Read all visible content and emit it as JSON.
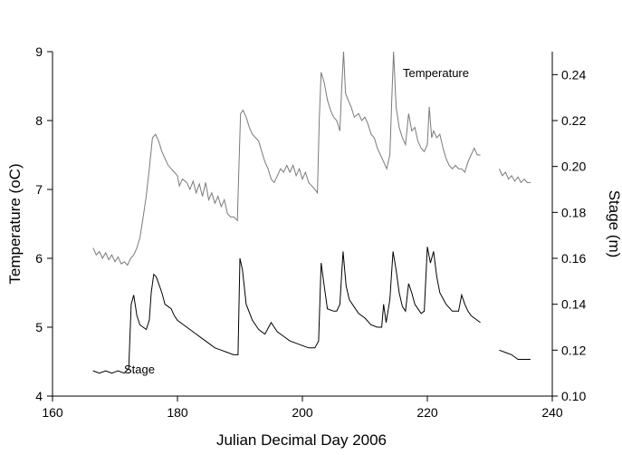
{
  "chart_data": {
    "type": "line",
    "xlabel": "Julian Decimal Day 2006",
    "ylabel_left": "Temperature (oC)",
    "ylabel_right": "Stage (m)",
    "xlim": [
      160,
      240
    ],
    "ylim_left": [
      4,
      9
    ],
    "ylim_right": [
      0.1,
      0.25
    ],
    "x_ticks": [
      "160",
      "180",
      "200",
      "220",
      "240"
    ],
    "y_left_ticks": [
      "4",
      "5",
      "6",
      "7",
      "8",
      "9"
    ],
    "y_right_ticks": [
      "0.10",
      "0.12",
      "0.14",
      "0.16",
      "0.18",
      "0.20",
      "0.22",
      "0.24"
    ],
    "annotations": {
      "temperature": "Temperature",
      "stage": "Stage"
    },
    "grid": false,
    "series": [
      {
        "name": "Temperature",
        "axis": "left",
        "color": "#7a7a7a",
        "segments": [
          [
            [
              166.5,
              6.15
            ],
            [
              167.0,
              6.05
            ],
            [
              167.5,
              6.1
            ],
            [
              168.0,
              6.0
            ],
            [
              168.5,
              6.08
            ],
            [
              169.0,
              5.98
            ],
            [
              169.5,
              6.05
            ],
            [
              170.0,
              5.95
            ],
            [
              170.5,
              6.02
            ],
            [
              171.0,
              5.92
            ],
            [
              171.5,
              5.95
            ],
            [
              172.0,
              5.9
            ],
            [
              172.5,
              6.0
            ],
            [
              173.0,
              6.05
            ],
            [
              173.5,
              6.15
            ],
            [
              174.0,
              6.3
            ],
            [
              174.5,
              6.6
            ],
            [
              175.0,
              6.9
            ],
            [
              175.5,
              7.3
            ],
            [
              176.0,
              7.75
            ],
            [
              176.5,
              7.8
            ],
            [
              177.0,
              7.7
            ],
            [
              177.5,
              7.55
            ],
            [
              178.0,
              7.45
            ],
            [
              178.5,
              7.35
            ],
            [
              179.0,
              7.3
            ],
            [
              179.5,
              7.25
            ],
            [
              180.0,
              7.2
            ],
            [
              180.3,
              7.05
            ],
            [
              180.8,
              7.15
            ],
            [
              181.5,
              7.1
            ],
            [
              182.0,
              7.0
            ],
            [
              182.5,
              7.12
            ],
            [
              183.0,
              6.95
            ],
            [
              183.5,
              7.08
            ],
            [
              184.0,
              6.9
            ],
            [
              184.5,
              7.1
            ],
            [
              185.0,
              6.85
            ],
            [
              185.5,
              6.95
            ],
            [
              186.0,
              6.8
            ],
            [
              186.5,
              6.9
            ],
            [
              187.0,
              6.75
            ],
            [
              187.5,
              6.85
            ],
            [
              188.0,
              6.65
            ],
            [
              188.5,
              6.6
            ],
            [
              189.0,
              6.6
            ],
            [
              189.6,
              6.55
            ],
            [
              189.8,
              7.2
            ],
            [
              190.1,
              8.1
            ],
            [
              190.5,
              8.15
            ],
            [
              191.0,
              8.05
            ],
            [
              191.5,
              7.9
            ],
            [
              192.0,
              7.8
            ],
            [
              192.5,
              7.75
            ],
            [
              193.0,
              7.7
            ],
            [
              193.5,
              7.55
            ],
            [
              194.0,
              7.4
            ],
            [
              194.5,
              7.3
            ],
            [
              195.0,
              7.15
            ],
            [
              195.5,
              7.1
            ],
            [
              196.0,
              7.2
            ],
            [
              196.5,
              7.3
            ],
            [
              197.0,
              7.25
            ],
            [
              197.5,
              7.35
            ],
            [
              198.0,
              7.25
            ],
            [
              198.5,
              7.35
            ],
            [
              199.0,
              7.2
            ],
            [
              199.5,
              7.3
            ],
            [
              200.0,
              7.15
            ],
            [
              200.5,
              7.25
            ],
            [
              201.0,
              7.1
            ],
            [
              201.5,
              7.05
            ],
            [
              202.0,
              7.0
            ],
            [
              202.4,
              6.95
            ],
            [
              202.7,
              8.0
            ],
            [
              203.0,
              8.7
            ],
            [
              203.5,
              8.55
            ],
            [
              204.0,
              8.3
            ],
            [
              204.5,
              8.15
            ],
            [
              205.0,
              8.05
            ],
            [
              205.5,
              8.0
            ],
            [
              206.0,
              7.85
            ],
            [
              206.3,
              8.5
            ],
            [
              206.6,
              9.0
            ],
            [
              206.9,
              8.4
            ],
            [
              207.3,
              8.3
            ],
            [
              207.8,
              8.2
            ],
            [
              208.3,
              8.05
            ],
            [
              209.0,
              8.1
            ],
            [
              209.5,
              8.0
            ],
            [
              210.0,
              8.05
            ],
            [
              210.5,
              7.95
            ],
            [
              211.0,
              7.8
            ],
            [
              211.5,
              7.75
            ],
            [
              212.0,
              7.6
            ],
            [
              212.5,
              7.5
            ],
            [
              213.0,
              7.4
            ],
            [
              213.5,
              7.3
            ],
            [
              214.0,
              7.5
            ],
            [
              214.3,
              8.3
            ],
            [
              214.6,
              9.0
            ],
            [
              215.0,
              8.2
            ],
            [
              215.5,
              7.9
            ],
            [
              216.0,
              7.75
            ],
            [
              216.5,
              7.65
            ],
            [
              217.0,
              8.1
            ],
            [
              217.5,
              7.85
            ],
            [
              218.0,
              7.9
            ],
            [
              218.5,
              7.7
            ],
            [
              219.0,
              7.6
            ],
            [
              219.5,
              7.55
            ],
            [
              220.0,
              7.65
            ],
            [
              220.3,
              8.2
            ],
            [
              220.7,
              7.75
            ],
            [
              221.0,
              7.85
            ],
            [
              221.5,
              7.75
            ],
            [
              222.0,
              7.8
            ],
            [
              222.5,
              7.6
            ],
            [
              223.0,
              7.45
            ],
            [
              223.5,
              7.35
            ],
            [
              224.0,
              7.3
            ],
            [
              224.5,
              7.35
            ],
            [
              225.0,
              7.3
            ],
            [
              225.5,
              7.3
            ],
            [
              226.0,
              7.25
            ],
            [
              226.5,
              7.4
            ],
            [
              227.0,
              7.5
            ],
            [
              227.5,
              7.6
            ],
            [
              228.0,
              7.5
            ],
            [
              228.5,
              7.5
            ]
          ],
          [
            [
              231.5,
              7.3
            ],
            [
              232.0,
              7.2
            ],
            [
              232.5,
              7.25
            ],
            [
              233.0,
              7.15
            ],
            [
              233.5,
              7.2
            ],
            [
              234.0,
              7.12
            ],
            [
              234.5,
              7.18
            ],
            [
              235.0,
              7.1
            ],
            [
              235.5,
              7.15
            ],
            [
              236.0,
              7.1
            ],
            [
              236.5,
              7.1
            ]
          ]
        ]
      },
      {
        "name": "Stage",
        "axis": "right",
        "color": "#000000",
        "segments": [
          [
            [
              166.5,
              0.111
            ],
            [
              167.5,
              0.11
            ],
            [
              168.5,
              0.111
            ],
            [
              169.5,
              0.11
            ],
            [
              170.5,
              0.111
            ],
            [
              171.5,
              0.11
            ],
            [
              172.2,
              0.112
            ],
            [
              172.6,
              0.14
            ],
            [
              173.0,
              0.144
            ],
            [
              173.5,
              0.135
            ],
            [
              174.0,
              0.131
            ],
            [
              174.5,
              0.13
            ],
            [
              175.0,
              0.129
            ],
            [
              175.5,
              0.133
            ],
            [
              175.8,
              0.145
            ],
            [
              176.2,
              0.153
            ],
            [
              176.6,
              0.152
            ],
            [
              177.0,
              0.149
            ],
            [
              177.5,
              0.145
            ],
            [
              178.0,
              0.14
            ],
            [
              178.5,
              0.139
            ],
            [
              179.0,
              0.138
            ],
            [
              179.5,
              0.135
            ],
            [
              180.0,
              0.133
            ],
            [
              181.0,
              0.131
            ],
            [
              182.0,
              0.129
            ],
            [
              183.0,
              0.127
            ],
            [
              184.0,
              0.125
            ],
            [
              185.0,
              0.123
            ],
            [
              186.0,
              0.121
            ],
            [
              187.0,
              0.12
            ],
            [
              188.0,
              0.119
            ],
            [
              189.0,
              0.118
            ],
            [
              189.7,
              0.118
            ],
            [
              190.0,
              0.16
            ],
            [
              190.4,
              0.155
            ],
            [
              191.0,
              0.14
            ],
            [
              192.0,
              0.133
            ],
            [
              193.0,
              0.129
            ],
            [
              194.0,
              0.127
            ],
            [
              195.0,
              0.132
            ],
            [
              195.5,
              0.13
            ],
            [
              196.0,
              0.128
            ],
            [
              197.0,
              0.126
            ],
            [
              198.0,
              0.124
            ],
            [
              199.0,
              0.123
            ],
            [
              200.0,
              0.122
            ],
            [
              201.0,
              0.121
            ],
            [
              202.0,
              0.121
            ],
            [
              202.6,
              0.124
            ],
            [
              203.0,
              0.158
            ],
            [
              203.5,
              0.148
            ],
            [
              204.0,
              0.138
            ],
            [
              205.0,
              0.137
            ],
            [
              205.5,
              0.137
            ],
            [
              206.0,
              0.14
            ],
            [
              206.5,
              0.163
            ],
            [
              207.0,
              0.148
            ],
            [
              207.5,
              0.142
            ],
            [
              208.0,
              0.14
            ],
            [
              208.5,
              0.138
            ],
            [
              209.0,
              0.136
            ],
            [
              210.0,
              0.134
            ],
            [
              211.0,
              0.131
            ],
            [
              212.0,
              0.13
            ],
            [
              212.7,
              0.13
            ],
            [
              213.0,
              0.14
            ],
            [
              213.4,
              0.132
            ],
            [
              214.0,
              0.142
            ],
            [
              214.5,
              0.163
            ],
            [
              215.0,
              0.155
            ],
            [
              215.5,
              0.145
            ],
            [
              216.0,
              0.139
            ],
            [
              216.5,
              0.137
            ],
            [
              217.0,
              0.149
            ],
            [
              217.5,
              0.145
            ],
            [
              218.0,
              0.14
            ],
            [
              218.5,
              0.138
            ],
            [
              219.0,
              0.136
            ],
            [
              219.5,
              0.137
            ],
            [
              220.0,
              0.165
            ],
            [
              220.5,
              0.158
            ],
            [
              221.0,
              0.163
            ],
            [
              221.5,
              0.152
            ],
            [
              222.0,
              0.145
            ],
            [
              223.0,
              0.14
            ],
            [
              224.0,
              0.137
            ],
            [
              225.0,
              0.137
            ],
            [
              225.5,
              0.144
            ],
            [
              226.0,
              0.14
            ],
            [
              226.5,
              0.137
            ],
            [
              227.0,
              0.135
            ],
            [
              228.0,
              0.133
            ],
            [
              228.5,
              0.132
            ]
          ],
          [
            [
              231.5,
              0.12
            ],
            [
              232.5,
              0.119
            ],
            [
              233.5,
              0.118
            ],
            [
              234.5,
              0.116
            ],
            [
              235.5,
              0.116
            ],
            [
              236.5,
              0.116
            ]
          ]
        ]
      }
    ]
  }
}
